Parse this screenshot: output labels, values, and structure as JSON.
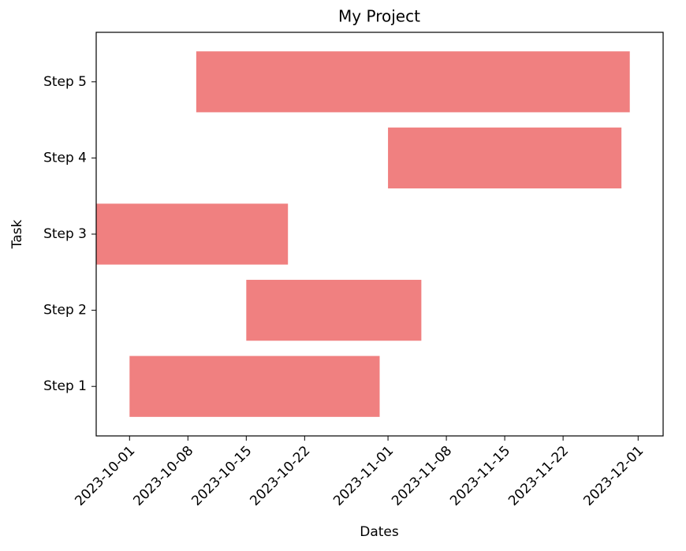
{
  "chart_data": {
    "type": "gantt",
    "title": "My Project",
    "x_label": "Dates",
    "y_label": "Task",
    "categories": [
      "Step 1",
      "Step 2",
      "Step 3",
      "Step 4",
      "Step 5"
    ],
    "start": [
      "2023-10-01",
      "2023-10-15",
      "2023-09-27",
      "2023-11-01",
      "2023-10-09"
    ],
    "end": [
      "2023-10-31",
      "2023-11-05",
      "2023-10-20",
      "2023-11-29",
      "2023-11-30"
    ],
    "color": "#f08080",
    "xlim": [
      "2023-09-27",
      "2023-12-04"
    ],
    "xticks": [
      "2023-10-01",
      "2023-10-08",
      "2023-10-15",
      "2023-10-22",
      "2023-11-01",
      "2023-11-08",
      "2023-11-15",
      "2023-11-22",
      "2023-12-01"
    ]
  }
}
